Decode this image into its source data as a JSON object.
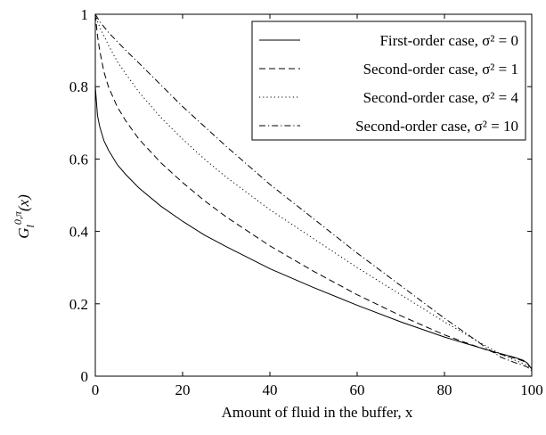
{
  "chart_data": {
    "type": "line",
    "xlabel": "Amount of fluid in the buffer, x",
    "ylabel": "G_l^{0,π}(x)",
    "xlim": [
      0,
      100
    ],
    "ylim": [
      0,
      1
    ],
    "x_ticks": [
      "0",
      "20",
      "40",
      "60",
      "80",
      "100"
    ],
    "y_ticks": [
      "0",
      "0.2",
      "0.4",
      "0.6",
      "0.8",
      "1"
    ],
    "legend_position": "top-right",
    "grid": false,
    "series": [
      {
        "name": "First-order case, σ² = 0",
        "style": "solid",
        "x": [
          0,
          0.5,
          1,
          2,
          3,
          5,
          7,
          10,
          15,
          20,
          25,
          30,
          40,
          50,
          60,
          70,
          80,
          85,
          90,
          93,
          96,
          98,
          99,
          100
        ],
        "y": [
          0.8,
          0.72,
          0.69,
          0.65,
          0.625,
          0.585,
          0.557,
          0.52,
          0.47,
          0.428,
          0.39,
          0.358,
          0.297,
          0.245,
          0.196,
          0.15,
          0.108,
          0.09,
          0.072,
          0.062,
          0.052,
          0.044,
          0.036,
          0.02
        ]
      },
      {
        "name": "Second-order case, σ² = 1",
        "style": "dashed",
        "x": [
          0,
          0.5,
          1,
          2,
          3,
          5,
          7,
          10,
          15,
          20,
          25,
          30,
          40,
          50,
          60,
          70,
          80,
          85,
          90,
          93,
          96,
          98,
          99,
          100
        ],
        "y": [
          1.0,
          0.94,
          0.9,
          0.84,
          0.8,
          0.745,
          0.705,
          0.655,
          0.59,
          0.535,
          0.485,
          0.44,
          0.36,
          0.29,
          0.225,
          0.167,
          0.114,
          0.092,
          0.071,
          0.06,
          0.05,
          0.042,
          0.035,
          0.02
        ]
      },
      {
        "name": "Second-order case, σ² = 4",
        "style": "dotted",
        "x": [
          0,
          0.5,
          1,
          2,
          3,
          5,
          7,
          10,
          15,
          20,
          25,
          30,
          40,
          50,
          60,
          70,
          80,
          85,
          90,
          93,
          96,
          98,
          99,
          100
        ],
        "y": [
          1.0,
          0.98,
          0.965,
          0.94,
          0.915,
          0.87,
          0.835,
          0.785,
          0.715,
          0.655,
          0.6,
          0.55,
          0.46,
          0.38,
          0.3,
          0.225,
          0.15,
          0.115,
          0.08,
          0.06,
          0.045,
          0.035,
          0.03,
          0.02
        ]
      },
      {
        "name": "Second-order case, σ² = 10",
        "style": "dashdot",
        "x": [
          0,
          0.5,
          1,
          2,
          3,
          5,
          7,
          10,
          15,
          20,
          25,
          30,
          40,
          50,
          60,
          70,
          80,
          85,
          90,
          93,
          96,
          98,
          99,
          100
        ],
        "y": [
          1.0,
          0.99,
          0.98,
          0.965,
          0.95,
          0.925,
          0.9,
          0.865,
          0.805,
          0.745,
          0.69,
          0.635,
          0.53,
          0.435,
          0.34,
          0.25,
          0.16,
          0.118,
          0.075,
          0.052,
          0.038,
          0.03,
          0.025,
          0.015
        ]
      }
    ]
  }
}
